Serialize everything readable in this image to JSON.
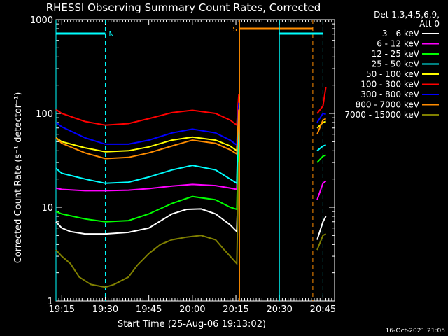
{
  "chart_data": {
    "type": "line",
    "title": "RHESSI Observing Summary Count Rates, Corrected",
    "xlabel": "Start Time (25-Aug-06 19:13:02)",
    "ylabel": "Corrected Count Rate (s⁻¹ detector⁻¹)",
    "x_unit": "minutes since 19:13:02",
    "xlim": [
      0,
      96
    ],
    "ylim": [
      1,
      1000
    ],
    "yscale": "log",
    "x_ticks": [
      {
        "label": "19:15",
        "x": 2
      },
      {
        "label": "19:30",
        "x": 17
      },
      {
        "label": "19:45",
        "x": 32
      },
      {
        "label": "20:00",
        "x": 47
      },
      {
        "label": "20:15",
        "x": 62
      },
      {
        "label": "20:30",
        "x": 77
      },
      {
        "label": "20:45",
        "x": 92
      }
    ],
    "y_ticks": [
      {
        "label": "1",
        "y": 1
      },
      {
        "label": "10",
        "y": 10
      },
      {
        "label": "100",
        "y": 100
      },
      {
        "label": "1000",
        "y": 1000
      }
    ],
    "legend_title": [
      "Det 1,3,4,5,6,9,",
      "Att 0"
    ],
    "legend_position": "right",
    "series": [
      {
        "name": "3 - 6 keV",
        "color": "#ffffff",
        "x": [
          0,
          2,
          5,
          10,
          17,
          25,
          32,
          40,
          45,
          50,
          55,
          60,
          62.3,
          63,
          90,
          92,
          93
        ],
        "y": [
          7,
          6,
          5.5,
          5.2,
          5.2,
          5.4,
          6,
          8.5,
          9.5,
          9.6,
          8.5,
          6.5,
          5.5,
          30,
          4.5,
          7,
          8
        ]
      },
      {
        "name": "6 - 12 keV",
        "color": "#ff00ff",
        "x": [
          0,
          2,
          10,
          17,
          25,
          32,
          40,
          47,
          55,
          60,
          62.3,
          63,
          90,
          92,
          93
        ],
        "y": [
          16,
          15.5,
          15,
          15,
          15.2,
          15.8,
          16.8,
          17.5,
          17,
          16,
          15.5,
          80,
          12,
          18,
          19
        ]
      },
      {
        "name": "12 - 25 keV",
        "color": "#00ff00",
        "x": [
          0,
          2,
          10,
          17,
          25,
          32,
          40,
          47,
          55,
          60,
          62.3,
          63,
          90,
          92,
          93
        ],
        "y": [
          9,
          8.5,
          7.5,
          7,
          7.2,
          8.5,
          11,
          13,
          12,
          10,
          9.5,
          60,
          30,
          35,
          36
        ]
      },
      {
        "name": "25 - 50 keV",
        "color": "#00ffff",
        "x": [
          0,
          2,
          10,
          17,
          25,
          32,
          40,
          47,
          55,
          60,
          62.3,
          63,
          90,
          92,
          93
        ],
        "y": [
          26,
          23,
          20,
          18,
          18.5,
          21,
          25,
          28,
          25,
          20,
          18,
          120,
          40,
          45,
          46
        ]
      },
      {
        "name": "50 - 100 keV",
        "color": "#ffff00",
        "x": [
          0,
          2,
          10,
          17,
          25,
          32,
          40,
          47,
          55,
          60,
          62.3,
          63,
          90,
          92,
          93
        ],
        "y": [
          55,
          50,
          43,
          39,
          40,
          44,
          52,
          56,
          52,
          45,
          40,
          150,
          70,
          80,
          82
        ]
      },
      {
        "name": "100 - 300 keV",
        "color": "#ff0000",
        "x": [
          0,
          2,
          10,
          17,
          25,
          32,
          40,
          47,
          55,
          60,
          62.3,
          63,
          90,
          92,
          93
        ],
        "y": [
          110,
          100,
          82,
          75,
          78,
          88,
          102,
          108,
          100,
          85,
          75,
          160,
          100,
          120,
          190
        ]
      },
      {
        "name": "300 - 800 keV",
        "color": "#0000ff",
        "x": [
          0,
          2,
          10,
          17,
          25,
          32,
          40,
          47,
          55,
          60,
          62.3,
          63,
          90,
          92,
          93
        ],
        "y": [
          80,
          72,
          55,
          47,
          47,
          52,
          62,
          68,
          62,
          52,
          46,
          130,
          80,
          100,
          98
        ]
      },
      {
        "name": "800 - 7000 keV",
        "color": "#ff8c00",
        "x": [
          0,
          2,
          10,
          17,
          25,
          32,
          40,
          47,
          55,
          60,
          62.3,
          63,
          90,
          92,
          93
        ],
        "y": [
          55,
          48,
          38,
          33,
          34,
          38,
          45,
          52,
          48,
          41,
          37,
          110,
          60,
          85,
          88
        ]
      },
      {
        "name": "7000 - 15000 keV",
        "color": "#808000",
        "x": [
          0,
          2,
          5,
          8,
          12,
          17,
          20,
          25,
          28,
          32,
          36,
          40,
          45,
          50,
          55,
          58,
          60,
          62.3,
          63,
          90,
          92,
          93
        ],
        "y": [
          3.5,
          3,
          2.5,
          1.8,
          1.5,
          1.4,
          1.5,
          1.8,
          2.4,
          3.2,
          4,
          4.5,
          4.8,
          5,
          4.5,
          3.5,
          3,
          2.5,
          30,
          3.5,
          5,
          5.2
        ]
      }
    ],
    "markers": [
      {
        "label": "N",
        "color": "#00ffff",
        "bar_from": 0,
        "bar_to": 17,
        "line_from": 0,
        "line_to": 17
      },
      {
        "label": "S",
        "color": "#ff8c00",
        "bar_from": 63.3,
        "bar_to": 88.5,
        "line_from": 63.3,
        "line_to": 88.5
      },
      {
        "label": "",
        "color": "#00ffff",
        "bar_from": 77,
        "bar_to": 92,
        "line_from": 77,
        "line_to": 92
      }
    ]
  },
  "footer": {
    "timestamp": "16-Oct-2021 21:05"
  }
}
